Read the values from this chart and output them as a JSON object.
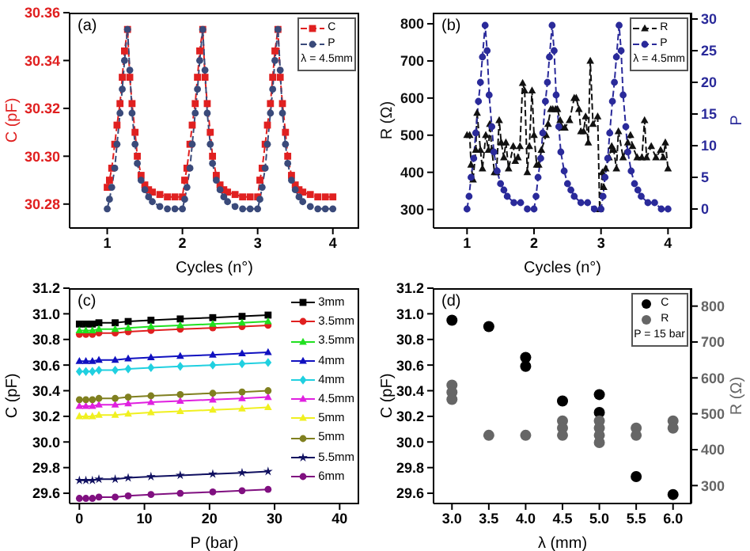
{
  "chart_data": [
    {
      "type": "line",
      "title": "(a)",
      "xlabel": "Cycles (n°)",
      "ylabel": "C (pF)",
      "xlim": [
        0.5,
        4.35
      ],
      "xticks": [
        1,
        2,
        3,
        4
      ],
      "ylim": [
        30.27,
        30.36
      ],
      "yticks": [
        30.28,
        {
          "value": 30.3,
          "label": "30.30"
        },
        30.32,
        30.34,
        30.36
      ],
      "legend": "top right",
      "line_style": "dashed",
      "annotations": [
        "λ = 4.5mm"
      ],
      "x": [
        1,
        1.03,
        1.06,
        1.1,
        1.13,
        1.17,
        1.2,
        1.23,
        1.27,
        1.3,
        1.33,
        1.37,
        1.4,
        1.45,
        1.5,
        1.55,
        1.6,
        1.7,
        1.8,
        1.9,
        2,
        2.03,
        2.06,
        2.1,
        2.13,
        2.17,
        2.2,
        2.23,
        2.27,
        2.3,
        2.33,
        2.37,
        2.4,
        2.45,
        2.5,
        2.55,
        2.6,
        2.7,
        2.8,
        2.9,
        3,
        3.03,
        3.06,
        3.1,
        3.13,
        3.17,
        3.2,
        3.23,
        3.27,
        3.3,
        3.33,
        3.37,
        3.4,
        3.45,
        3.5,
        3.55,
        3.6,
        3.7,
        3.8,
        3.9,
        4
      ],
      "series": [
        {
          "name": "C",
          "color": "#e02020",
          "marker": "square",
          "values": [
            30.287,
            30.29,
            30.295,
            30.305,
            30.313,
            30.322,
            30.333,
            30.344,
            30.353,
            30.333,
            30.322,
            30.31,
            30.3,
            30.292,
            30.288,
            30.286,
            30.285,
            30.284,
            30.283,
            30.283,
            30.283,
            30.29,
            30.295,
            30.305,
            30.313,
            30.322,
            30.333,
            30.344,
            30.353,
            30.333,
            30.322,
            30.31,
            30.3,
            30.292,
            30.288,
            30.286,
            30.285,
            30.284,
            30.283,
            30.283,
            30.283,
            30.29,
            30.295,
            30.305,
            30.313,
            30.322,
            30.333,
            30.344,
            30.353,
            30.333,
            30.322,
            30.31,
            30.3,
            30.292,
            30.288,
            30.286,
            30.285,
            30.284,
            30.283,
            30.283,
            30.283
          ]
        },
        {
          "name": "P",
          "color": "#3a4a7a",
          "marker": "circle",
          "values": [
            30.278,
            30.282,
            30.287,
            30.295,
            30.305,
            30.318,
            30.328,
            30.34,
            30.353,
            30.336,
            30.318,
            30.305,
            30.297,
            30.29,
            30.286,
            30.283,
            30.281,
            30.279,
            30.278,
            30.278,
            30.278,
            30.282,
            30.287,
            30.295,
            30.305,
            30.318,
            30.328,
            30.34,
            30.353,
            30.336,
            30.318,
            30.305,
            30.297,
            30.29,
            30.286,
            30.283,
            30.281,
            30.279,
            30.278,
            30.278,
            30.278,
            30.282,
            30.287,
            30.295,
            30.305,
            30.318,
            30.328,
            30.34,
            30.353,
            30.336,
            30.318,
            30.305,
            30.297,
            30.29,
            30.286,
            30.283,
            30.281,
            30.279,
            30.278,
            30.278,
            30.278
          ]
        }
      ]
    },
    {
      "type": "line",
      "title": "(b)",
      "xlabel": "Cycles (n°)",
      "ylabel": "R (Ω)",
      "y2label": "P",
      "xlim": [
        0.5,
        4.35
      ],
      "xticks": [
        1,
        2,
        3,
        4
      ],
      "ylim": [
        250,
        830
      ],
      "yticks": [
        300,
        400,
        500,
        600,
        700,
        800
      ],
      "y2lim": [
        -3,
        31
      ],
      "y2ticks": [
        0,
        5,
        10,
        15,
        20,
        25,
        30
      ],
      "legend": "top right",
      "line_style": "dashed",
      "annotations": [
        "λ = 4.5mm"
      ],
      "series": [
        {
          "name": "R",
          "color": "#111111",
          "marker": "triangle",
          "x": [
            1.0,
            1.04,
            1.06,
            1.09,
            1.13,
            1.15,
            1.2,
            1.23,
            1.28,
            1.32,
            1.34,
            1.37,
            1.41,
            1.44,
            1.48,
            1.51,
            1.55,
            1.58,
            1.62,
            1.69,
            1.72,
            1.76,
            1.79,
            1.83,
            1.86,
            1.9,
            1.93,
            1.97,
            2.0,
            2.04,
            2.07,
            2.11,
            2.18,
            2.21,
            2.25,
            2.28,
            2.32,
            2.35,
            2.39,
            2.42,
            2.46,
            2.53,
            2.6,
            2.63,
            2.67,
            2.7,
            2.74,
            2.77,
            2.81,
            2.84,
            2.88,
            2.95,
            2.98,
            3.02,
            3.04,
            3.07,
            3.12,
            3.16,
            3.19,
            3.23,
            3.26,
            3.33,
            3.4,
            3.44,
            3.47,
            3.54,
            3.61,
            3.65,
            3.68,
            3.75,
            3.82,
            3.89,
            3.93,
            3.96,
            4.0
          ],
          "values": [
            500,
            500,
            420,
            380,
            460,
            560,
            460,
            410,
            500,
            460,
            530,
            460,
            400,
            400,
            540,
            480,
            440,
            480,
            410,
            470,
            430,
            440,
            470,
            640,
            620,
            400,
            470,
            620,
            500,
            420,
            420,
            460,
            500,
            530,
            570,
            570,
            570,
            570,
            540,
            520,
            520,
            540,
            600,
            600,
            570,
            510,
            510,
            550,
            480,
            700,
            530,
            550,
            300,
            400,
            360,
            410,
            440,
            470,
            460,
            410,
            510,
            440,
            480,
            500,
            470,
            440,
            440,
            540,
            440,
            470,
            440,
            460,
            440,
            480,
            410
          ]
        },
        {
          "name": "P",
          "color": "#2a2a9a",
          "marker": "circle",
          "axis": "y2",
          "x": [
            1,
            1.03,
            1.06,
            1.1,
            1.13,
            1.17,
            1.2,
            1.23,
            1.27,
            1.3,
            1.33,
            1.37,
            1.4,
            1.45,
            1.5,
            1.55,
            1.6,
            1.7,
            1.8,
            1.9,
            2,
            2.03,
            2.06,
            2.1,
            2.13,
            2.17,
            2.2,
            2.23,
            2.27,
            2.3,
            2.33,
            2.37,
            2.4,
            2.45,
            2.5,
            2.55,
            2.6,
            2.7,
            2.8,
            2.9,
            3,
            3.03,
            3.06,
            3.1,
            3.13,
            3.17,
            3.2,
            3.23,
            3.27,
            3.3,
            3.33,
            3.37,
            3.4,
            3.45,
            3.5,
            3.55,
            3.6,
            3.7,
            3.8,
            3.9,
            4
          ],
          "values": [
            0,
            2,
            5,
            8,
            12,
            17,
            20,
            24,
            29,
            25,
            18,
            13,
            9,
            6,
            4,
            3,
            2,
            1,
            1,
            0,
            0,
            2,
            5,
            8,
            12,
            17,
            20,
            24,
            29,
            25,
            18,
            13,
            9,
            6,
            4,
            3,
            2,
            1,
            1,
            0,
            0,
            2,
            5,
            8,
            12,
            17,
            20,
            24,
            29,
            25,
            18,
            13,
            9,
            6,
            4,
            3,
            2,
            1,
            1,
            0,
            0
          ]
        }
      ]
    },
    {
      "type": "line",
      "title": "(c)",
      "xlabel": "P (bar)",
      "ylabel": "C (pF)",
      "xlim": [
        -1.5,
        43
      ],
      "xticks": [
        0,
        10,
        20,
        30,
        40
      ],
      "ylim": [
        29.52,
        31.2
      ],
      "yticks": [
        29.6,
        29.8,
        {
          "value": 30,
          "label": "30.0"
        },
        30.2,
        30.4,
        30.6,
        30.8,
        {
          "value": 31,
          "label": "31.0"
        },
        31.2
      ],
      "legend": "right",
      "line_style": "solid",
      "x": [
        0,
        1,
        2,
        3,
        5.5,
        7.5,
        11,
        15.5,
        20.5,
        25,
        29
      ],
      "series": [
        {
          "name": "3mm",
          "color": "#000000",
          "marker": "square",
          "values": [
            30.92,
            30.92,
            30.92,
            30.93,
            30.93,
            30.94,
            30.95,
            30.96,
            30.97,
            30.98,
            30.99
          ]
        },
        {
          "name": "3.5mm",
          "color": "#e02020",
          "marker": "circle",
          "values": [
            30.84,
            30.84,
            30.84,
            30.85,
            30.85,
            30.86,
            30.87,
            30.88,
            30.89,
            30.9,
            30.91
          ]
        },
        {
          "name": "3.5mm",
          "color": "#20e020",
          "marker": "triangle",
          "values": [
            30.87,
            30.87,
            30.87,
            30.88,
            30.88,
            30.89,
            30.9,
            30.91,
            30.92,
            30.93,
            30.94
          ]
        },
        {
          "name": "4mm",
          "color": "#1010c0",
          "marker": "triangle",
          "values": [
            30.63,
            30.63,
            30.63,
            30.64,
            30.64,
            30.65,
            30.66,
            30.67,
            30.68,
            30.69,
            30.7
          ]
        },
        {
          "name": "4mm",
          "color": "#20d0e0",
          "marker": "diamond",
          "values": [
            30.55,
            30.55,
            30.55,
            30.56,
            30.56,
            30.57,
            30.58,
            30.59,
            30.6,
            30.61,
            30.62
          ]
        },
        {
          "name": "4.5mm",
          "color": "#e020e0",
          "marker": "triangle",
          "values": [
            30.28,
            30.28,
            30.28,
            30.29,
            30.29,
            30.3,
            30.31,
            30.32,
            30.33,
            30.34,
            30.35
          ]
        },
        {
          "name": "5mm",
          "color": "#f0f020",
          "marker": "triangle",
          "values": [
            30.2,
            30.2,
            30.2,
            30.21,
            30.21,
            30.22,
            30.23,
            30.24,
            30.25,
            30.26,
            30.27
          ]
        },
        {
          "name": "5mm",
          "color": "#808020",
          "marker": "circle",
          "values": [
            30.33,
            30.33,
            30.33,
            30.34,
            30.34,
            30.35,
            30.36,
            30.37,
            30.38,
            30.39,
            30.4
          ]
        },
        {
          "name": "5.5mm",
          "color": "#101060",
          "marker": "star",
          "values": [
            29.7,
            29.7,
            29.7,
            29.71,
            29.71,
            29.72,
            29.73,
            29.74,
            29.75,
            29.76,
            29.77
          ]
        },
        {
          "name": "6mm",
          "color": "#801080",
          "marker": "circle",
          "values": [
            29.56,
            29.56,
            29.56,
            29.57,
            29.57,
            29.58,
            29.59,
            29.6,
            29.61,
            29.62,
            29.63
          ]
        }
      ]
    },
    {
      "type": "scatter",
      "title": "(d)",
      "xlabel": "λ (mm)",
      "ylabel": "C (pF)",
      "y2label": "R (Ω)",
      "xlim": [
        2.75,
        6.25
      ],
      "xticks": [
        {
          "value": 3,
          "label": "3.0"
        },
        3.5,
        {
          "value": 4,
          "label": "4.0"
        },
        4.5,
        {
          "value": 5,
          "label": "5.0"
        },
        5.5,
        {
          "value": 6,
          "label": "6.0"
        }
      ],
      "ylim": [
        29.52,
        31.2
      ],
      "yticks": [
        29.6,
        29.8,
        {
          "value": 30,
          "label": "30.0"
        },
        30.2,
        30.4,
        30.6,
        30.8,
        {
          "value": 31,
          "label": "31.0"
        },
        31.2
      ],
      "y2lim": [
        250,
        850
      ],
      "y2ticks": [
        300,
        400,
        500,
        600,
        700,
        800
      ],
      "legend": "top right",
      "marker": "circle",
      "annotations": [
        "P = 15 bar"
      ],
      "series": [
        {
          "name": "C",
          "color": "#000000",
          "x": [
            3,
            3.5,
            4,
            4,
            4.5,
            5,
            5,
            5.5,
            6
          ],
          "values": [
            30.95,
            30.9,
            30.66,
            30.59,
            30.32,
            30.37,
            30.23,
            29.73,
            29.59
          ]
        },
        {
          "name": "R",
          "color": "#666666",
          "axis": "y2",
          "x": [
            3,
            3,
            3,
            3.5,
            4,
            4.5,
            4.5,
            4.5,
            5,
            5,
            5,
            5,
            5.5,
            5.5,
            6,
            6
          ],
          "values": [
            580,
            560,
            540,
            440,
            440,
            480,
            460,
            440,
            480,
            460,
            440,
            420,
            460,
            440,
            480,
            460
          ]
        }
      ]
    }
  ]
}
